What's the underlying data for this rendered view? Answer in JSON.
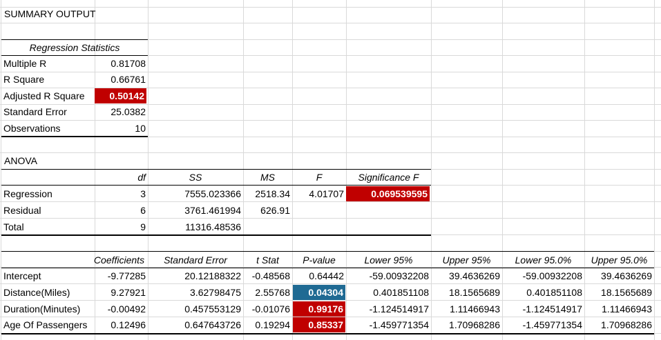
{
  "summary": {
    "title": "SUMMARY OUTPUT"
  },
  "regression_stats": {
    "header": "Regression Statistics",
    "rows": [
      {
        "label": "Multiple R",
        "value": "0.81708"
      },
      {
        "label": "R Square",
        "value": "0.66761"
      },
      {
        "label": "Adjusted R Square",
        "value": "0.50142"
      },
      {
        "label": "Standard Error",
        "value": "25.0382"
      },
      {
        "label": "Observations",
        "value": "10"
      }
    ]
  },
  "anova": {
    "title": "ANOVA",
    "headers": [
      "df",
      "SS",
      "MS",
      "F",
      "Significance F"
    ],
    "rows": [
      {
        "label": "Regression",
        "df": "3",
        "ss": "7555.023366",
        "ms": "2518.34",
        "f": "4.01707",
        "sig": "0.069539595"
      },
      {
        "label": "Residual",
        "df": "6",
        "ss": "3761.461994",
        "ms": "626.91",
        "f": "",
        "sig": ""
      },
      {
        "label": "Total",
        "df": "9",
        "ss": "11316.48536",
        "ms": "",
        "f": "",
        "sig": ""
      }
    ]
  },
  "coefficients": {
    "headers": [
      "Coefficients",
      "Standard Error",
      "t Stat",
      "P-value",
      "Lower 95%",
      "Upper 95%",
      "Lower 95.0%",
      "Upper 95.0%"
    ],
    "rows": [
      {
        "label": "Intercept",
        "coef": "-9.77285",
        "se": "20.12188322",
        "t": "-0.48568",
        "p": "0.64442",
        "lo": "-59.00932208",
        "hi": "39.4636269",
        "lo2": "-59.00932208",
        "hi2": "39.4636269"
      },
      {
        "label": "Distance(Miles)",
        "coef": "9.27921",
        "se": "3.62798475",
        "t": "2.55768",
        "p": "0.04304",
        "lo": "0.401851108",
        "hi": "18.1565689",
        "lo2": "0.401851108",
        "hi2": "18.1565689"
      },
      {
        "label": "Duration(Minutes)",
        "coef": "-0.00492",
        "se": "0.457553129",
        "t": "-0.01076",
        "p": "0.99176",
        "lo": "-1.124514917",
        "hi": "1.11466943",
        "lo2": "-1.124514917",
        "hi2": "1.11466943"
      },
      {
        "label": "Age Of Passengers",
        "coef": "0.12496",
        "se": "0.647643726",
        "t": "0.19294",
        "p": "0.85337",
        "lo": "-1.459771354",
        "hi": "1.70968286",
        "lo2": "-1.459771354",
        "hi2": "1.70968286"
      }
    ]
  },
  "colors": {
    "highlight_red": "#c00000",
    "highlight_blue": "#1f6a93"
  }
}
